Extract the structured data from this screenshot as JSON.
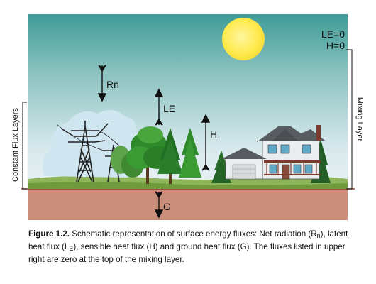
{
  "diagram": {
    "labels": {
      "rn": "Rn",
      "le": "LE",
      "h": "H",
      "g": "G",
      "le_zero": "LE=0",
      "h_zero": "H=0",
      "mixing_layer": "Mixing Layer",
      "constant_flux_layers": "Constant Flux Layers"
    },
    "colors": {
      "sky_top": "#3f9c98",
      "sky_bottom": "#e2edf3",
      "ground": "#c98f7a",
      "ground_line": "#9c3a2a",
      "sun": "#ffe94a",
      "tree": "#2f8a2c",
      "house_roof": "#585c60",
      "house_wall": "#ebeef0"
    },
    "icons": [
      "sun-icon",
      "power-tower-icon",
      "tree-icon",
      "house-icon",
      "cloud-icon"
    ]
  },
  "caption": {
    "figure_number": "Figure 1.2.",
    "part1": " Schematic representation of surface energy fluxes: Net radiation (R",
    "rn_sub": "n",
    "part2": "), latent heat flux (L",
    "le_sub": "E",
    "part3": "), sensible heat flux (H) and ground heat flux (G). The fluxes listed in upper right are zero at the top of the mixing layer."
  }
}
